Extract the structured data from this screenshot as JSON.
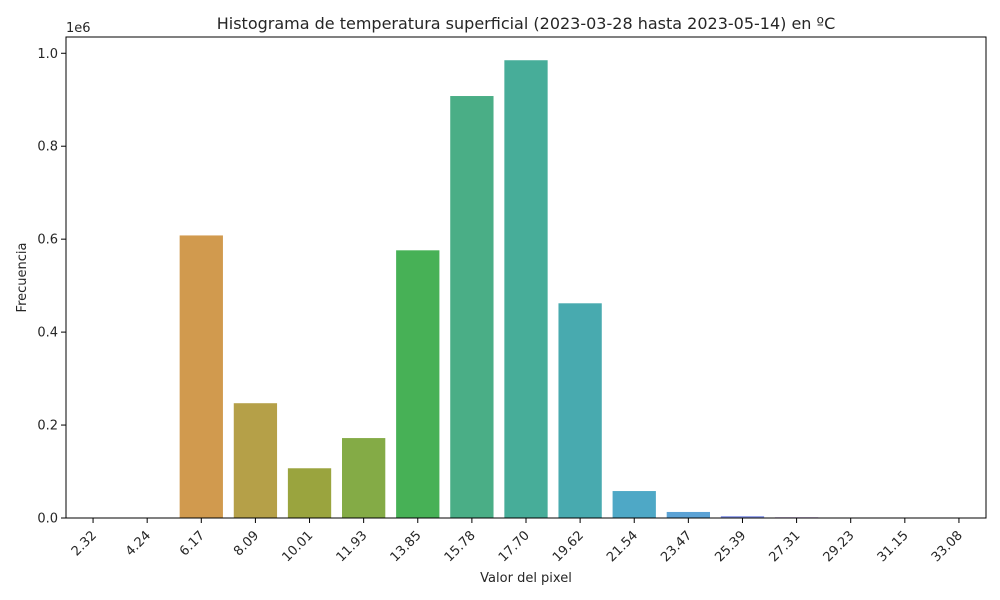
{
  "chart_data": {
    "type": "bar",
    "title": "Histograma de temperatura superficial (2023-03-28 hasta 2023-05-14) en ºC",
    "xlabel": "Valor del pixel",
    "ylabel": "Frecuencia",
    "y_offset_label": "1e6",
    "categories": [
      "2.32",
      "4.24",
      "6.17",
      "8.09",
      "10.01",
      "11.93",
      "13.85",
      "15.78",
      "17.70",
      "19.62",
      "21.54",
      "23.47",
      "25.39",
      "27.31",
      "29.23",
      "31.15",
      "33.08"
    ],
    "values": [
      0,
      0,
      608000,
      247000,
      107000,
      172000,
      576000,
      908000,
      985000,
      462000,
      58000,
      13000,
      4000,
      1500,
      300,
      100,
      0
    ],
    "colors": [
      "#ea8e8f",
      "#e6926b",
      "#d19a4e",
      "#b5a048",
      "#9aa43e",
      "#84ab46",
      "#47b156",
      "#4aae86",
      "#47ad99",
      "#48aaaf",
      "#4ea8c6",
      "#5ba2d5",
      "#8a97e8",
      "#b085dc",
      "#d178d8",
      "#e079bf",
      "#ea86a8"
    ],
    "ylim": [
      0,
      1035000
    ],
    "yticks": [
      0,
      0.2,
      0.4,
      0.6,
      0.8,
      1.0
    ],
    "ytick_labels": [
      "0.0",
      "0.2",
      "0.4",
      "0.6",
      "0.8",
      "1.0"
    ],
    "grid": false
  }
}
